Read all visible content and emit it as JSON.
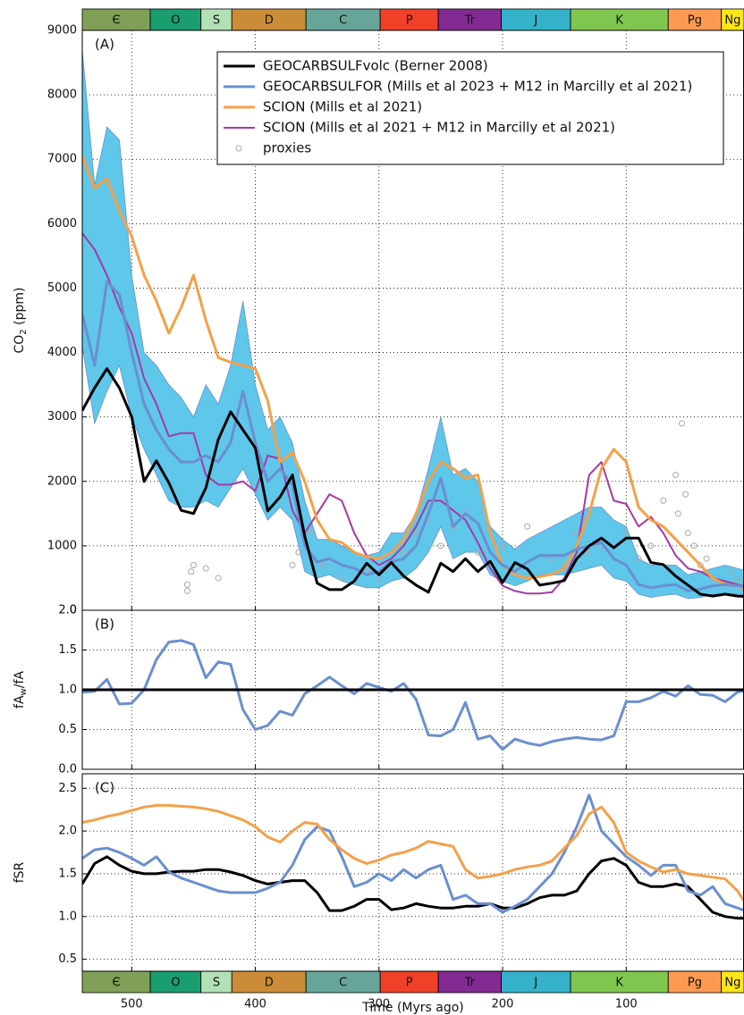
{
  "timescale": [
    {
      "label": "Є",
      "start": 541,
      "end": 485,
      "color": "#7fa056"
    },
    {
      "label": "O",
      "start": 485,
      "end": 444,
      "color": "#1a9d6f"
    },
    {
      "label": "S",
      "start": 444,
      "end": 419,
      "color": "#b3e1b6"
    },
    {
      "label": "D",
      "start": 419,
      "end": 359,
      "color": "#cb8c37"
    },
    {
      "label": "C",
      "start": 359,
      "end": 299,
      "color": "#67a599"
    },
    {
      "label": "P",
      "start": 299,
      "end": 252,
      "color": "#f04028"
    },
    {
      "label": "Tr",
      "start": 252,
      "end": 201,
      "color": "#812b92"
    },
    {
      "label": "J",
      "start": 201,
      "end": 145,
      "color": "#34b2c9"
    },
    {
      "label": "K",
      "start": 145,
      "end": 66,
      "color": "#7fc64e"
    },
    {
      "label": "Pg",
      "start": 66,
      "end": 23,
      "color": "#fd9a52"
    },
    {
      "label": "Ng",
      "start": 23,
      "end": 0,
      "color": "#ffe619"
    }
  ],
  "chart_data": [
    {
      "type": "line",
      "panel_label": "(A)",
      "ylabel": [
        "CO",
        "2",
        " (ppm)"
      ],
      "grid": true,
      "legend": "top-right",
      "xlim": [
        540,
        0
      ],
      "xticks": [
        500,
        400,
        300,
        200,
        100
      ],
      "ylim": [
        0,
        9000
      ],
      "yticks": [
        0,
        1000,
        2000,
        3000,
        4000,
        5000,
        6000,
        7000,
        8000,
        9000
      ],
      "x": [
        540,
        530,
        520,
        510,
        500,
        490,
        480,
        470,
        460,
        450,
        440,
        430,
        420,
        410,
        400,
        390,
        380,
        370,
        360,
        350,
        340,
        330,
        320,
        310,
        300,
        290,
        280,
        270,
        260,
        250,
        240,
        230,
        220,
        210,
        200,
        190,
        180,
        170,
        160,
        150,
        140,
        130,
        120,
        110,
        100,
        90,
        80,
        70,
        60,
        50,
        40,
        30,
        20,
        10,
        0
      ],
      "series": [
        {
          "name": "GEOCARBSULFvolc (Berner 2008)",
          "color": "#000000",
          "width": 3,
          "values": [
            3100,
            3450,
            3750,
            3450,
            3000,
            2000,
            2320,
            1980,
            1550,
            1500,
            1900,
            2650,
            3080,
            2800,
            2520,
            1540,
            1760,
            2100,
            1150,
            420,
            320,
            320,
            450,
            730,
            550,
            740,
            530,
            390,
            280,
            730,
            600,
            800,
            600,
            760,
            430,
            740,
            640,
            390,
            420,
            460,
            800,
            1000,
            1120,
            970,
            1120,
            1120,
            740,
            710,
            530,
            390,
            250,
            220,
            250,
            220,
            210
          ]
        },
        {
          "name": "GEOCARBSULFOR (Mills et al 2023 + M12 in Marcilly et al 2021)",
          "color": "#6a8fd0",
          "width": 3,
          "band_color": "#5ec7ea",
          "values": [
            4600,
            3800,
            5100,
            4900,
            4000,
            3200,
            2800,
            2500,
            2300,
            2300,
            2400,
            2300,
            2600,
            3400,
            2600,
            2000,
            2200,
            1950,
            1000,
            750,
            800,
            700,
            650,
            550,
            600,
            750,
            800,
            1000,
            1500,
            2050,
            1300,
            1500,
            1350,
            900,
            700,
            600,
            750,
            850,
            850,
            850,
            950,
            1000,
            1050,
            800,
            700,
            400,
            350,
            380,
            400,
            300,
            330,
            380,
            400,
            380,
            350
          ],
          "lower": [
            4100,
            2900,
            3400,
            3800,
            3000,
            2500,
            2100,
            1700,
            1600,
            1600,
            1700,
            1600,
            1900,
            2200,
            1800,
            1400,
            1600,
            1400,
            600,
            500,
            550,
            450,
            400,
            350,
            350,
            450,
            500,
            650,
            900,
            1300,
            800,
            900,
            900,
            550,
            450,
            380,
            450,
            550,
            550,
            550,
            600,
            650,
            700,
            500,
            450,
            250,
            200,
            230,
            250,
            180,
            200,
            250,
            260,
            250,
            230
          ],
          "upper": [
            8700,
            6600,
            7500,
            7300,
            5200,
            4000,
            3800,
            3500,
            3300,
            3000,
            3500,
            3200,
            3800,
            4800,
            3500,
            2800,
            3000,
            2600,
            1700,
            1100,
            1100,
            1000,
            900,
            850,
            900,
            1200,
            1200,
            1500,
            2200,
            3000,
            2100,
            2200,
            2000,
            1300,
            1100,
            950,
            1100,
            1200,
            1300,
            1400,
            1500,
            1600,
            1600,
            1400,
            1300,
            800,
            700,
            700,
            700,
            550,
            600,
            650,
            700,
            650,
            600
          ]
        },
        {
          "name": "SCION (Mills et al 2021)",
          "color": "#f4a04a",
          "width": 3,
          "values": [
            7050,
            6550,
            6700,
            6200,
            5800,
            5200,
            4800,
            4300,
            4700,
            5200,
            4500,
            3920,
            3850,
            3800,
            3750,
            3250,
            2300,
            2450,
            2000,
            1400,
            1100,
            1050,
            900,
            830,
            800,
            900,
            1100,
            1500,
            2000,
            2300,
            2200,
            2050,
            2100,
            1200,
            700,
            550,
            500,
            520,
            560,
            650,
            1000,
            1500,
            2200,
            2500,
            2300,
            1600,
            1400,
            1300,
            1100,
            900,
            700,
            500,
            400,
            380,
            300
          ]
        },
        {
          "name": "SCION (Mills et al 2021 + M12 in Marcilly et al 2021)",
          "color": "#a43aa4",
          "width": 2,
          "values": [
            5850,
            5600,
            5200,
            4700,
            4300,
            3600,
            3200,
            2700,
            2750,
            2750,
            2100,
            1950,
            1950,
            2000,
            1850,
            2400,
            2350,
            1550,
            1200,
            1500,
            1800,
            1700,
            1200,
            850,
            700,
            800,
            1000,
            1300,
            1700,
            1700,
            1550,
            1400,
            1050,
            650,
            380,
            300,
            260,
            260,
            280,
            500,
            900,
            2100,
            2300,
            1700,
            1650,
            1300,
            1450,
            1200,
            850,
            650,
            600,
            500,
            450,
            400,
            350
          ]
        },
        {
          "name": "proxies",
          "color": "#a8a8a8",
          "marker": "circle",
          "x": [
            455,
            455,
            452,
            450,
            440,
            430,
            370,
            365,
            355,
            345,
            330,
            310,
            300,
            295,
            280,
            270,
            260,
            250,
            240,
            230,
            220,
            200,
            180,
            160,
            150,
            140,
            130,
            120,
            100,
            90,
            80,
            70,
            60,
            58,
            55,
            52,
            50,
            45,
            40,
            35,
            30,
            20,
            15,
            10,
            5,
            3
          ],
          "values": [
            300,
            400,
            600,
            700,
            650,
            500,
            700,
            900,
            1200,
            700,
            500,
            600,
            500,
            650,
            900,
            1200,
            1400,
            1000,
            1300,
            1500,
            900,
            1000,
            1300,
            800,
            700,
            1200,
            900,
            1000,
            1200,
            800,
            1000,
            1700,
            2100,
            1500,
            2900,
            1800,
            1200,
            1000,
            700,
            800,
            500,
            400,
            600,
            450,
            350,
            500
          ]
        }
      ]
    },
    {
      "type": "line",
      "panel_label": "(B)",
      "ylabel": [
        "fA",
        "w",
        "/fA"
      ],
      "grid": true,
      "xlim": [
        540,
        0
      ],
      "xticks": [
        500,
        400,
        300,
        200,
        100
      ],
      "ylim": [
        0,
        2
      ],
      "yticks": [
        {
          "value": 0,
          "label": "0.0"
        },
        0.5,
        {
          "value": 1,
          "label": "1.0"
        },
        1.5,
        {
          "value": 2,
          "label": "2.0"
        }
      ],
      "x": [
        540,
        530,
        520,
        510,
        500,
        490,
        480,
        470,
        460,
        450,
        440,
        430,
        420,
        410,
        400,
        390,
        380,
        370,
        360,
        350,
        340,
        330,
        320,
        310,
        300,
        290,
        280,
        270,
        260,
        250,
        240,
        230,
        220,
        210,
        200,
        190,
        180,
        170,
        160,
        150,
        140,
        130,
        120,
        110,
        100,
        90,
        80,
        70,
        60,
        50,
        40,
        30,
        20,
        10,
        0
      ],
      "series": [
        {
          "color": "#000000",
          "width": 3,
          "values": [
            1,
            1,
            1,
            1,
            1,
            1,
            1,
            1,
            1,
            1,
            1,
            1,
            1,
            1,
            1,
            1,
            1,
            1,
            1,
            1,
            1,
            1,
            1,
            1,
            1,
            1,
            1,
            1,
            1,
            1,
            1,
            1,
            1,
            1,
            1,
            1,
            1,
            1,
            1,
            1,
            1,
            1,
            1,
            1,
            1,
            1,
            1,
            1,
            1,
            1,
            1,
            1,
            1,
            1,
            1
          ]
        },
        {
          "color": "#6a8fd0",
          "width": 3,
          "values": [
            0.97,
            0.98,
            1.13,
            0.82,
            0.83,
            1.0,
            1.38,
            1.6,
            1.62,
            1.57,
            1.15,
            1.35,
            1.32,
            0.75,
            0.5,
            0.55,
            0.73,
            0.68,
            0.95,
            1.05,
            1.16,
            1.05,
            0.95,
            1.08,
            1.03,
            0.98,
            1.08,
            0.88,
            0.43,
            0.42,
            0.5,
            0.84,
            0.38,
            0.42,
            0.25,
            0.38,
            0.33,
            0.3,
            0.35,
            0.38,
            0.4,
            0.38,
            0.37,
            0.42,
            0.85,
            0.85,
            0.9,
            0.98,
            0.92,
            1.05,
            0.94,
            0.93,
            0.85,
            0.97,
            1.0
          ]
        }
      ]
    },
    {
      "type": "line",
      "panel_label": "(C)",
      "ylabel": [
        "fSR"
      ],
      "grid": true,
      "xlabel": "Time (Myrs ago)",
      "xlim": [
        540,
        0
      ],
      "xticks": [
        500,
        400,
        300,
        200,
        100
      ],
      "ylim": [
        0.36,
        2.67
      ],
      "yticks": [
        0.5,
        {
          "value": 1,
          "label": "1.0"
        },
        1.5,
        {
          "value": 2,
          "label": "2.0"
        },
        2.5
      ],
      "x": [
        540,
        530,
        520,
        510,
        500,
        490,
        480,
        470,
        460,
        450,
        440,
        430,
        420,
        410,
        400,
        390,
        380,
        370,
        360,
        350,
        340,
        330,
        320,
        310,
        300,
        290,
        280,
        270,
        260,
        250,
        240,
        230,
        220,
        210,
        200,
        190,
        180,
        170,
        160,
        150,
        140,
        130,
        120,
        110,
        100,
        90,
        80,
        70,
        60,
        50,
        40,
        30,
        20,
        10,
        0
      ],
      "series": [
        {
          "color": "#f4a04a",
          "width": 3,
          "values": [
            2.1,
            2.13,
            2.17,
            2.2,
            2.24,
            2.28,
            2.3,
            2.3,
            2.29,
            2.28,
            2.26,
            2.23,
            2.18,
            2.13,
            2.05,
            1.93,
            1.87,
            2.0,
            2.1,
            2.08,
            1.9,
            1.78,
            1.68,
            1.62,
            1.66,
            1.72,
            1.75,
            1.8,
            1.88,
            1.85,
            1.82,
            1.55,
            1.45,
            1.47,
            1.5,
            1.55,
            1.58,
            1.6,
            1.65,
            1.8,
            1.95,
            2.2,
            2.28,
            2.1,
            1.75,
            1.65,
            1.58,
            1.52,
            1.55,
            1.5,
            1.48,
            1.46,
            1.44,
            1.3,
            1.08
          ]
        },
        {
          "color": "#6a8fd0",
          "width": 3,
          "values": [
            1.68,
            1.78,
            1.8,
            1.75,
            1.68,
            1.6,
            1.7,
            1.52,
            1.45,
            1.4,
            1.35,
            1.3,
            1.28,
            1.28,
            1.28,
            1.33,
            1.4,
            1.6,
            1.9,
            2.05,
            2.0,
            1.7,
            1.35,
            1.4,
            1.5,
            1.42,
            1.55,
            1.45,
            1.55,
            1.6,
            1.2,
            1.25,
            1.15,
            1.15,
            1.05,
            1.12,
            1.2,
            1.35,
            1.5,
            1.75,
            2.05,
            2.42,
            2.0,
            1.85,
            1.7,
            1.6,
            1.48,
            1.6,
            1.6,
            1.3,
            1.25,
            1.35,
            1.15,
            1.1,
            1.05
          ]
        },
        {
          "color": "#000000",
          "width": 3,
          "values": [
            1.38,
            1.62,
            1.7,
            1.6,
            1.53,
            1.5,
            1.5,
            1.52,
            1.53,
            1.53,
            1.55,
            1.55,
            1.52,
            1.48,
            1.42,
            1.38,
            1.4,
            1.42,
            1.42,
            1.28,
            1.07,
            1.07,
            1.12,
            1.2,
            1.2,
            1.08,
            1.1,
            1.15,
            1.12,
            1.1,
            1.1,
            1.12,
            1.12,
            1.15,
            1.1,
            1.1,
            1.15,
            1.22,
            1.25,
            1.25,
            1.3,
            1.5,
            1.65,
            1.68,
            1.6,
            1.4,
            1.35,
            1.35,
            1.38,
            1.35,
            1.2,
            1.05,
            1.0,
            0.98,
            0.98
          ]
        }
      ]
    }
  ]
}
